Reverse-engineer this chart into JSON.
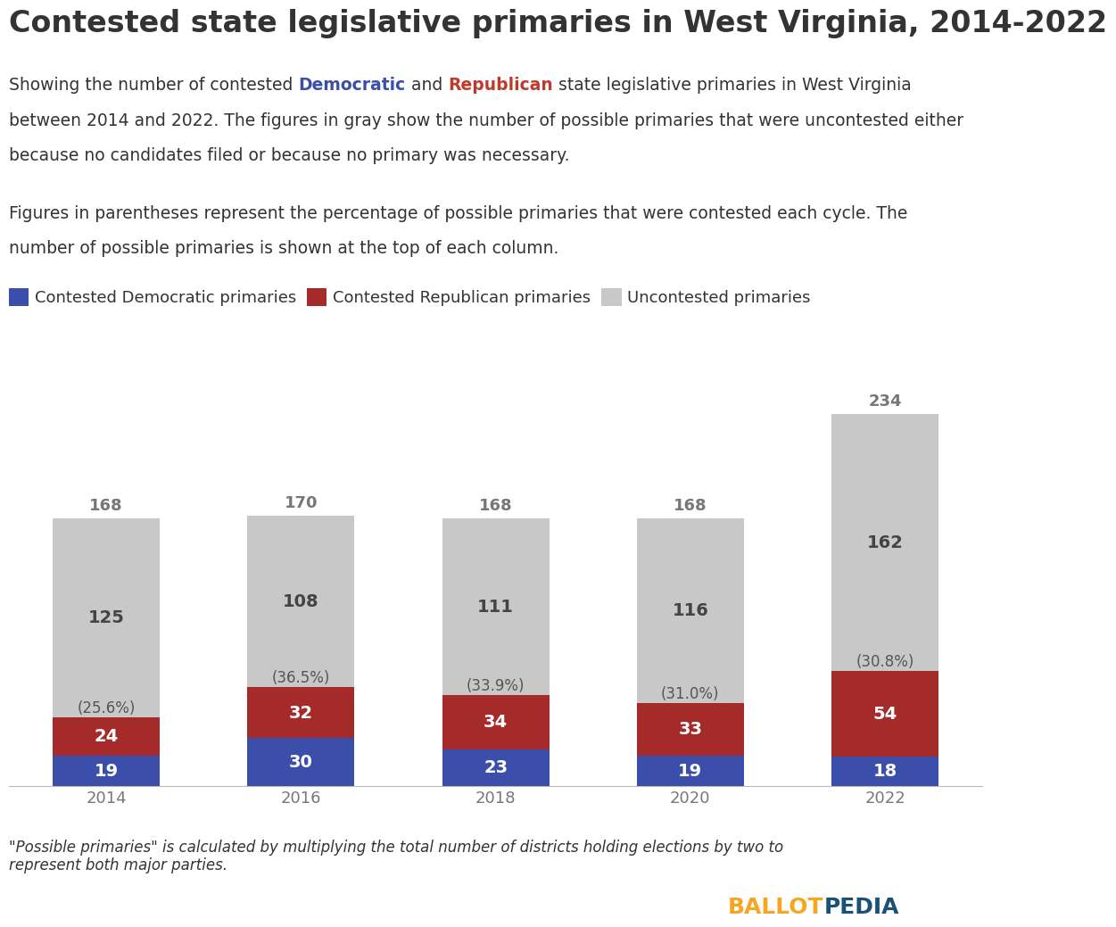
{
  "title": "Contested state legislative primaries in West Virginia, 2014-2022",
  "years": [
    "2014",
    "2016",
    "2018",
    "2020",
    "2022"
  ],
  "dem_values": [
    19,
    30,
    23,
    19,
    18
  ],
  "rep_values": [
    24,
    32,
    34,
    33,
    54
  ],
  "uncontested_values": [
    125,
    108,
    111,
    116,
    162
  ],
  "total_values": [
    168,
    170,
    168,
    168,
    234
  ],
  "percentages": [
    "(25.6%)",
    "(36.5%)",
    "(33.9%)",
    "(31.0%)",
    "(30.8%)"
  ],
  "dem_color": "#3A4EAA",
  "rep_color": "#A52A2A",
  "uncontested_color": "#C8C8C8",
  "dem_label_color": "#3A4EAA",
  "rep_label_color": "#C0392B",
  "text_color": "#333333",
  "gray_label_color": "#777777",
  "legend_dem_label": "Contested Democratic primaries",
  "legend_rep_label": "Contested Republican primaries",
  "legend_unc_label": "Uncontested primaries",
  "ballotpedia_ballot_color": "#F5A623",
  "ballotpedia_pedia_color": "#1A5276",
  "background_color": "#FFFFFF",
  "bar_width": 0.55,
  "ylim": [
    0,
    255
  ],
  "title_fontsize": 24,
  "subtitle_fontsize": 13.5,
  "footnote_fontsize": 12,
  "legend_fontsize": 13,
  "bar_label_fontsize": 14,
  "total_label_fontsize": 13,
  "pct_label_fontsize": 12,
  "axis_tick_fontsize": 13
}
